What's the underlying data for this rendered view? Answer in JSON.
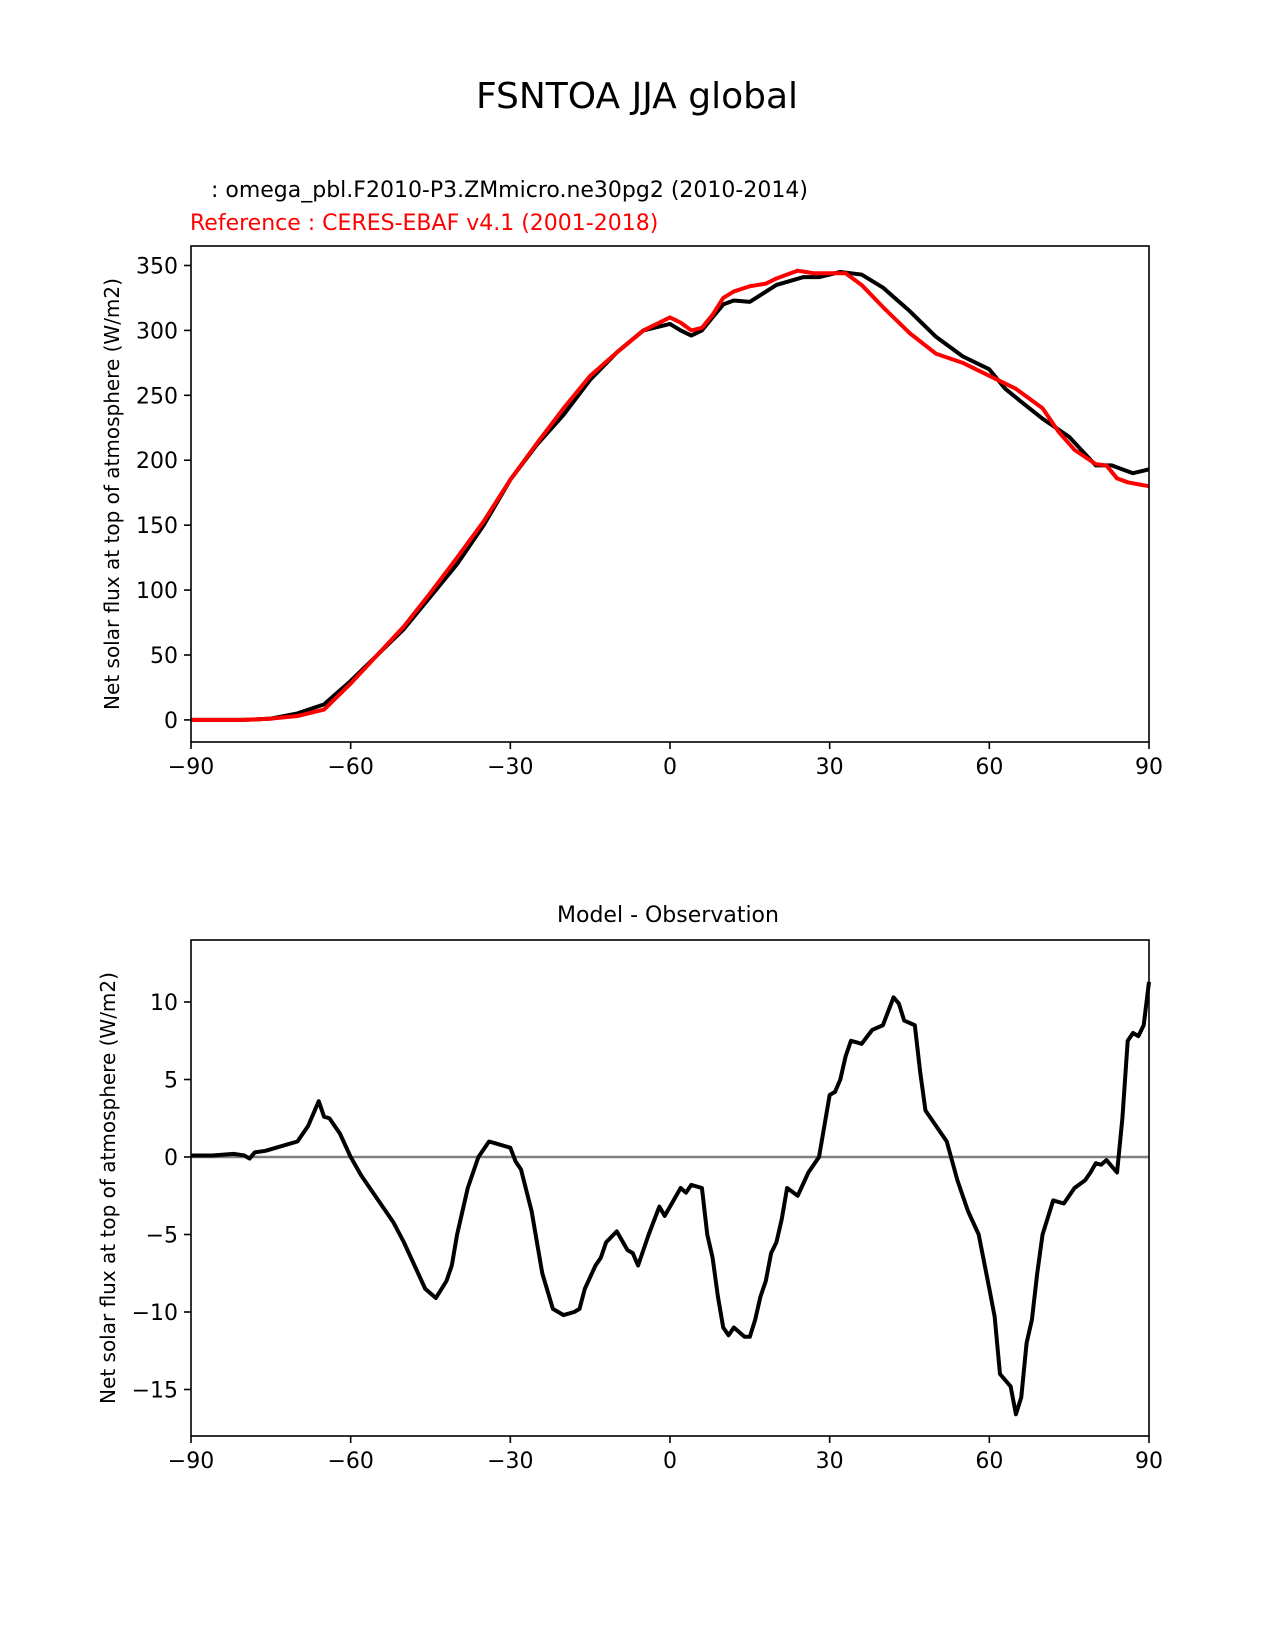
{
  "figure": {
    "suptitle": "FSNTOA JJA global",
    "top_caption_test": "   : omega_pbl.F2010-P3.ZMmicro.ne30pg2 (2010-2014)",
    "top_caption_ref": "Reference : CERES-EBAF v4.1 (2001-2018)",
    "bottom_title": "Model - Observation",
    "colors": {
      "test": "#000000",
      "reference": "#ff0000",
      "zero_line": "#808080"
    }
  },
  "chart_data": [
    {
      "type": "line",
      "title": "",
      "xlabel": "",
      "ylabel": "Net solar flux at top of atmosphere (W/m2)",
      "xlim": [
        -90,
        90
      ],
      "ylim": [
        -17,
        365
      ],
      "xticks": [
        -90,
        -60,
        -30,
        0,
        30,
        60,
        90
      ],
      "yticks": [
        0,
        50,
        100,
        150,
        200,
        250,
        300,
        350
      ],
      "series": [
        {
          "name": "omega_pbl.F2010-P3.ZMmicro.ne30pg2 (2010-2014)",
          "color": "#000000",
          "x": [
            -90,
            -85,
            -80,
            -75,
            -70,
            -65,
            -60,
            -55,
            -50,
            -45,
            -40,
            -35,
            -30,
            -25,
            -20,
            -15,
            -10,
            -5,
            0,
            2,
            4,
            6,
            8,
            10,
            12,
            15,
            20,
            25,
            28,
            32,
            36,
            40,
            45,
            50,
            55,
            60,
            63,
            66,
            70,
            75,
            80,
            83,
            85,
            87,
            90
          ],
          "y": [
            0,
            0,
            0,
            1,
            5,
            12,
            30,
            50,
            70,
            95,
            120,
            150,
            185,
            212,
            235,
            262,
            283,
            300,
            305,
            300,
            296,
            300,
            310,
            320,
            323,
            322,
            335,
            341,
            341,
            345,
            343,
            333,
            315,
            295,
            280,
            270,
            255,
            245,
            232,
            218,
            196,
            196,
            193,
            190,
            193
          ]
        },
        {
          "name": "Reference : CERES-EBAF v4.1 (2001-2018)",
          "color": "#ff0000",
          "x": [
            -90,
            -85,
            -80,
            -75,
            -70,
            -65,
            -60,
            -55,
            -50,
            -45,
            -40,
            -35,
            -30,
            -25,
            -20,
            -15,
            -10,
            -5,
            0,
            2,
            4,
            6,
            8,
            10,
            12,
            15,
            18,
            20,
            24,
            27,
            30,
            33,
            36,
            40,
            45,
            50,
            55,
            60,
            65,
            70,
            73,
            76,
            80,
            82,
            84,
            86,
            90
          ],
          "y": [
            0,
            0,
            0,
            1,
            3,
            8,
            28,
            50,
            72,
            98,
            125,
            153,
            185,
            213,
            240,
            265,
            283,
            300,
            310,
            306,
            300,
            302,
            312,
            325,
            330,
            334,
            336,
            340,
            346,
            344,
            344,
            344,
            335,
            318,
            298,
            282,
            275,
            265,
            255,
            240,
            222,
            208,
            197,
            196,
            186,
            183,
            180
          ]
        }
      ]
    },
    {
      "type": "line",
      "title": "Model - Observation",
      "xlabel": "",
      "ylabel": "Net solar flux at top of atmosphere (W/m2)",
      "xlim": [
        -90,
        90
      ],
      "ylim": [
        -18,
        14
      ],
      "xticks": [
        -90,
        -60,
        -30,
        0,
        30,
        60,
        90
      ],
      "yticks": [
        -15,
        -10,
        -5,
        0,
        5,
        10
      ],
      "zero_line": true,
      "series": [
        {
          "name": "Model - Observation",
          "color": "#000000",
          "x": [
            -90,
            -86,
            -82,
            -80,
            -79,
            -78,
            -76,
            -74,
            -72,
            -70,
            -68,
            -66,
            -65,
            -64,
            -62,
            -60,
            -58,
            -56,
            -54,
            -52,
            -50,
            -48,
            -46,
            -44,
            -42,
            -41,
            -40,
            -38,
            -36,
            -34,
            -32,
            -30,
            -29,
            -28,
            -26,
            -25,
            -24,
            -22,
            -20,
            -18,
            -17,
            -16,
            -14,
            -13,
            -12,
            -10,
            -8,
            -7,
            -6,
            -4,
            -2,
            -1,
            0,
            2,
            3,
            4,
            6,
            7,
            8,
            9,
            10,
            11,
            12,
            14,
            15,
            16,
            17,
            18,
            19,
            20,
            21,
            22,
            24,
            26,
            28,
            30,
            31,
            32,
            33,
            34,
            36,
            38,
            40,
            42,
            43,
            44,
            46,
            47,
            48,
            50,
            52,
            54,
            56,
            58,
            60,
            61,
            62,
            64,
            65,
            66,
            67,
            68,
            69,
            70,
            72,
            74,
            76,
            78,
            79,
            80,
            81,
            82,
            84,
            85,
            86,
            87,
            88,
            89,
            90
          ],
          "y": [
            0.1,
            0.1,
            0.2,
            0.1,
            -0.1,
            0.3,
            0.4,
            0.6,
            0.8,
            1.0,
            2.0,
            3.6,
            2.6,
            2.5,
            1.5,
            0.0,
            -1.2,
            -2.2,
            -3.2,
            -4.2,
            -5.5,
            -7.0,
            -8.5,
            -9.1,
            -8.0,
            -7.0,
            -5.0,
            -2.0,
            0.0,
            1.0,
            0.8,
            0.6,
            -0.3,
            -0.8,
            -3.5,
            -5.5,
            -7.5,
            -9.8,
            -10.2,
            -10.0,
            -9.8,
            -8.5,
            -7.0,
            -6.5,
            -5.5,
            -4.8,
            -6.0,
            -6.2,
            -7.0,
            -5.0,
            -3.2,
            -3.8,
            -3.2,
            -2.0,
            -2.3,
            -1.8,
            -2.0,
            -5.0,
            -6.5,
            -9.0,
            -11.0,
            -11.5,
            -11.0,
            -11.6,
            -11.6,
            -10.5,
            -9.0,
            -8.0,
            -6.2,
            -5.5,
            -4.0,
            -2.0,
            -2.5,
            -1.0,
            0.0,
            4.0,
            4.2,
            5.0,
            6.5,
            7.5,
            7.3,
            8.2,
            8.5,
            10.3,
            9.9,
            8.8,
            8.5,
            5.5,
            3.0,
            2.0,
            1.0,
            -1.5,
            -3.5,
            -5.0,
            -8.5,
            -10.3,
            -14.0,
            -14.8,
            -16.6,
            -15.5,
            -12.0,
            -10.5,
            -7.5,
            -5.0,
            -2.8,
            -3.0,
            -2.0,
            -1.5,
            -1.0,
            -0.4,
            -0.5,
            -0.2,
            -1.0,
            2.5,
            7.5,
            8.0,
            7.8,
            8.5,
            11.3
          ]
        }
      ]
    }
  ]
}
